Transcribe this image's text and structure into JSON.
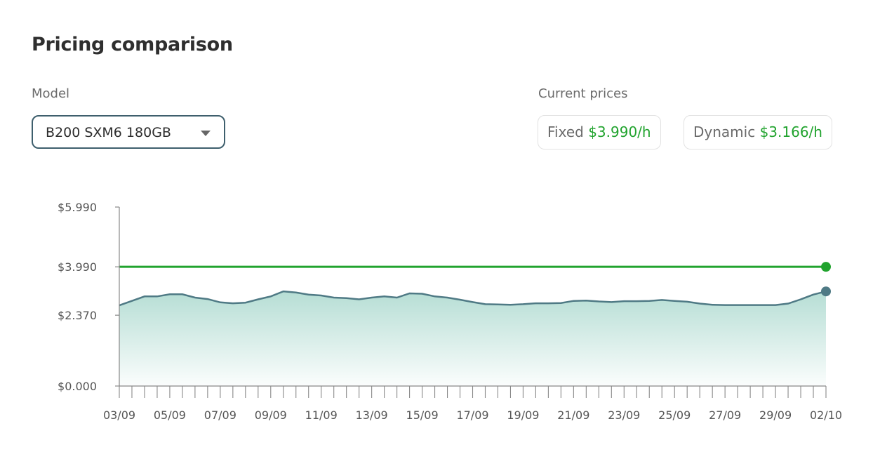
{
  "title": "Pricing comparison",
  "model": {
    "label": "Model",
    "selected": "B200 SXM6 180GB"
  },
  "current_prices": {
    "label": "Current prices",
    "fixed": {
      "label": "Fixed",
      "value": "$3.990/h"
    },
    "dynamic": {
      "label": "Dynamic",
      "value": "$3.166/h"
    }
  },
  "colors": {
    "fixed_line": "#21a32e",
    "dynamic_line": "#4f7a85",
    "dynamic_fill_top": "#a9d8cd",
    "axis": "#888888"
  },
  "chart_data": {
    "type": "area",
    "ylim": [
      0,
      5.99
    ],
    "y_ticks": [
      {
        "value": 0,
        "label": "$0.000"
      },
      {
        "value": 2.37,
        "label": "$2.370"
      },
      {
        "value": 3.99,
        "label": "$3.990"
      },
      {
        "value": 5.99,
        "label": "$5.990"
      }
    ],
    "x_labels": [
      "03/09",
      "05/09",
      "07/09",
      "09/09",
      "11/09",
      "13/09",
      "15/09",
      "17/09",
      "19/09",
      "21/09",
      "23/09",
      "25/09",
      "27/09",
      "29/09",
      "02/10"
    ],
    "x_ticks_count": 57,
    "series": [
      {
        "name": "Fixed",
        "style": "line",
        "values": [
          3.99,
          3.99
        ]
      },
      {
        "name": "Dynamic",
        "style": "area",
        "values": [
          2.7,
          2.85,
          3.0,
          3.0,
          3.07,
          3.07,
          2.96,
          2.91,
          2.8,
          2.77,
          2.79,
          2.9,
          3.0,
          3.17,
          3.13,
          3.06,
          3.03,
          2.96,
          2.94,
          2.9,
          2.96,
          3.0,
          2.96,
          3.1,
          3.09,
          3.0,
          2.96,
          2.89,
          2.81,
          2.74,
          2.73,
          2.72,
          2.74,
          2.77,
          2.77,
          2.78,
          2.85,
          2.86,
          2.83,
          2.81,
          2.84,
          2.84,
          2.85,
          2.88,
          2.85,
          2.82,
          2.76,
          2.72,
          2.71,
          2.71,
          2.71,
          2.71,
          2.71,
          2.76,
          2.9,
          3.06,
          3.166
        ]
      }
    ]
  }
}
